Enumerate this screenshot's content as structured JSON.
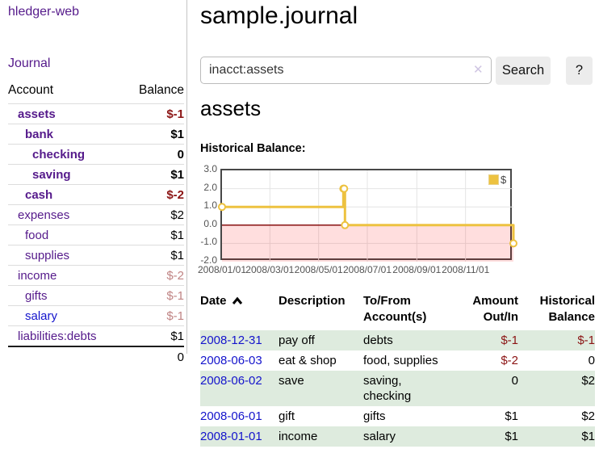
{
  "app": {
    "title": "hledger-web"
  },
  "sidebar": {
    "journal_label": "Journal",
    "accounts": {
      "headers": {
        "account": "Account",
        "balance": "Balance"
      },
      "rows": [
        {
          "name": "assets",
          "balance": "$-1",
          "indent": 1,
          "bold": true
        },
        {
          "name": "bank",
          "balance": "$1",
          "indent": 2,
          "bold": true
        },
        {
          "name": "checking",
          "balance": "0",
          "indent": 3,
          "bold": true
        },
        {
          "name": "saving",
          "balance": "$1",
          "indent": 3,
          "bold": true
        },
        {
          "name": "cash",
          "balance": "$-2",
          "indent": 2,
          "bold": true
        },
        {
          "name": "expenses",
          "balance": "$2",
          "indent": 1,
          "bold": false
        },
        {
          "name": "food",
          "balance": "$1",
          "indent": 2,
          "bold": false
        },
        {
          "name": "supplies",
          "balance": "$1",
          "indent": 2,
          "bold": false
        },
        {
          "name": "income",
          "balance": "$-2",
          "indent": 1,
          "bold": false
        },
        {
          "name": "gifts",
          "balance": "$-1",
          "indent": 2,
          "bold": false
        },
        {
          "name": "salary",
          "balance": "$-1",
          "indent": 2,
          "bold": false,
          "unvisited": true
        },
        {
          "name": "liabilities:debts",
          "balance": "$1",
          "indent": 1,
          "bold": false
        }
      ],
      "total": "0"
    }
  },
  "main": {
    "page_title": "sample.journal",
    "search": {
      "value": "inacct:assets",
      "clear_symbol": "✕",
      "button_label": "Search",
      "help_label": "?"
    },
    "account_heading": "assets",
    "chart_label": "Historical Balance:"
  },
  "chart_data": {
    "type": "line",
    "step": true,
    "title": "Historical Balance",
    "series": [
      {
        "name": "$",
        "color": "#EDC240",
        "points": [
          {
            "date": "2008-01-01",
            "value": 1
          },
          {
            "date": "2008-06-01",
            "value": 2
          },
          {
            "date": "2008-06-02",
            "value": 2
          },
          {
            "date": "2008-06-03",
            "value": 0
          },
          {
            "date": "2008-12-31",
            "value": -1
          }
        ]
      }
    ],
    "xrange": [
      "2008-01-01",
      "2008-12-31"
    ],
    "ylim": [
      -2,
      3
    ],
    "yticks": [
      {
        "label": "3.0",
        "value": 3
      },
      {
        "label": "2.0",
        "value": 2
      },
      {
        "label": "1.0",
        "value": 1
      },
      {
        "label": "0.0",
        "value": 0
      },
      {
        "label": "-1.0",
        "value": -1
      },
      {
        "label": "-2.0",
        "value": -2
      }
    ],
    "xticks": [
      {
        "label": "2008/01/01",
        "date": "2008-01-01"
      },
      {
        "label": "2008/03/01",
        "date": "2008-03-01"
      },
      {
        "label": "2008/05/01",
        "date": "2008-05-01"
      },
      {
        "label": "2008/07/01",
        "date": "2008-07-01"
      },
      {
        "label": "2008/09/01",
        "date": "2008-09-01"
      },
      {
        "label": "2008/11/01",
        "date": "2008-11-01"
      }
    ],
    "legend": {
      "label": "$",
      "position": "top-right"
    },
    "grid": true,
    "negative_fill": "rgba(255,0,0,0.13)",
    "zero_line_color": "#871111"
  },
  "register": {
    "headers": {
      "date": "Date",
      "description": "Description",
      "accounts": "To/From Account(s)",
      "amount": "Amount Out/In",
      "balance": "Historical Balance"
    },
    "rows": [
      {
        "date": "2008-12-31",
        "description": "pay off",
        "accounts": "debts",
        "amount": "$-1",
        "balance": "$-1"
      },
      {
        "date": "2008-06-03",
        "description": "eat & shop",
        "accounts": "food, supplies",
        "amount": "$-2",
        "balance": "0"
      },
      {
        "date": "2008-06-02",
        "description": "save",
        "accounts": "saving, checking",
        "amount": "0",
        "balance": "$2"
      },
      {
        "date": "2008-06-01",
        "description": "gift",
        "accounts": "gifts",
        "amount": "$1",
        "balance": "$2"
      },
      {
        "date": "2008-01-01",
        "description": "income",
        "accounts": "salary",
        "amount": "$1",
        "balance": "$1"
      }
    ]
  },
  "colors": {
    "link_purple": "#551A8B",
    "link_blue": "#1414CC",
    "negative_strong": "#8B1414",
    "negative_soft": "#C08484",
    "row_green": "#DEEBDE",
    "chart_line": "#EDC240",
    "button_bg": "#ECECEC"
  }
}
